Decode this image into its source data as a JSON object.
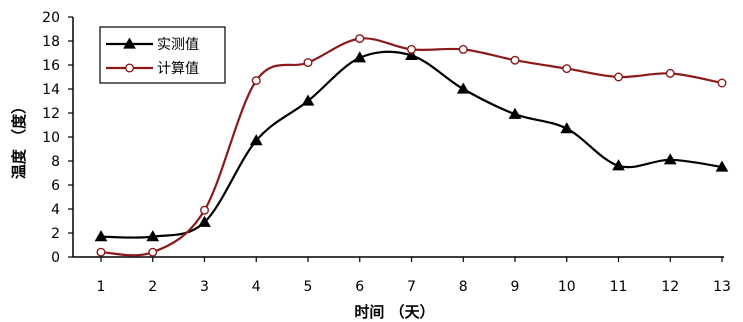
{
  "chart_data": {
    "type": "line",
    "xlabel": "时间 （天）",
    "ylabel": "温度 （度）",
    "x": [
      1,
      2,
      3,
      4,
      5,
      6,
      7,
      8,
      9,
      10,
      11,
      12,
      13
    ],
    "xlim": [
      1,
      13
    ],
    "ylim": [
      0,
      20
    ],
    "yticks": [
      0,
      2,
      4,
      6,
      8,
      10,
      12,
      14,
      16,
      18,
      20
    ],
    "grid": false,
    "legend_position": "top-left",
    "series": [
      {
        "name": "实测值",
        "color": "#000000",
        "marker": "filled-triangle",
        "values": [
          1.7,
          1.7,
          2.9,
          9.7,
          13.0,
          16.6,
          16.8,
          14.0,
          11.9,
          10.7,
          7.6,
          8.1,
          7.5
        ]
      },
      {
        "name": "计算值",
        "color": "#8b1a1a",
        "marker": "open-circle",
        "values": [
          0.4,
          0.4,
          3.9,
          14.7,
          16.2,
          18.2,
          17.3,
          17.3,
          16.4,
          15.7,
          15.0,
          15.3,
          14.5
        ]
      }
    ]
  }
}
